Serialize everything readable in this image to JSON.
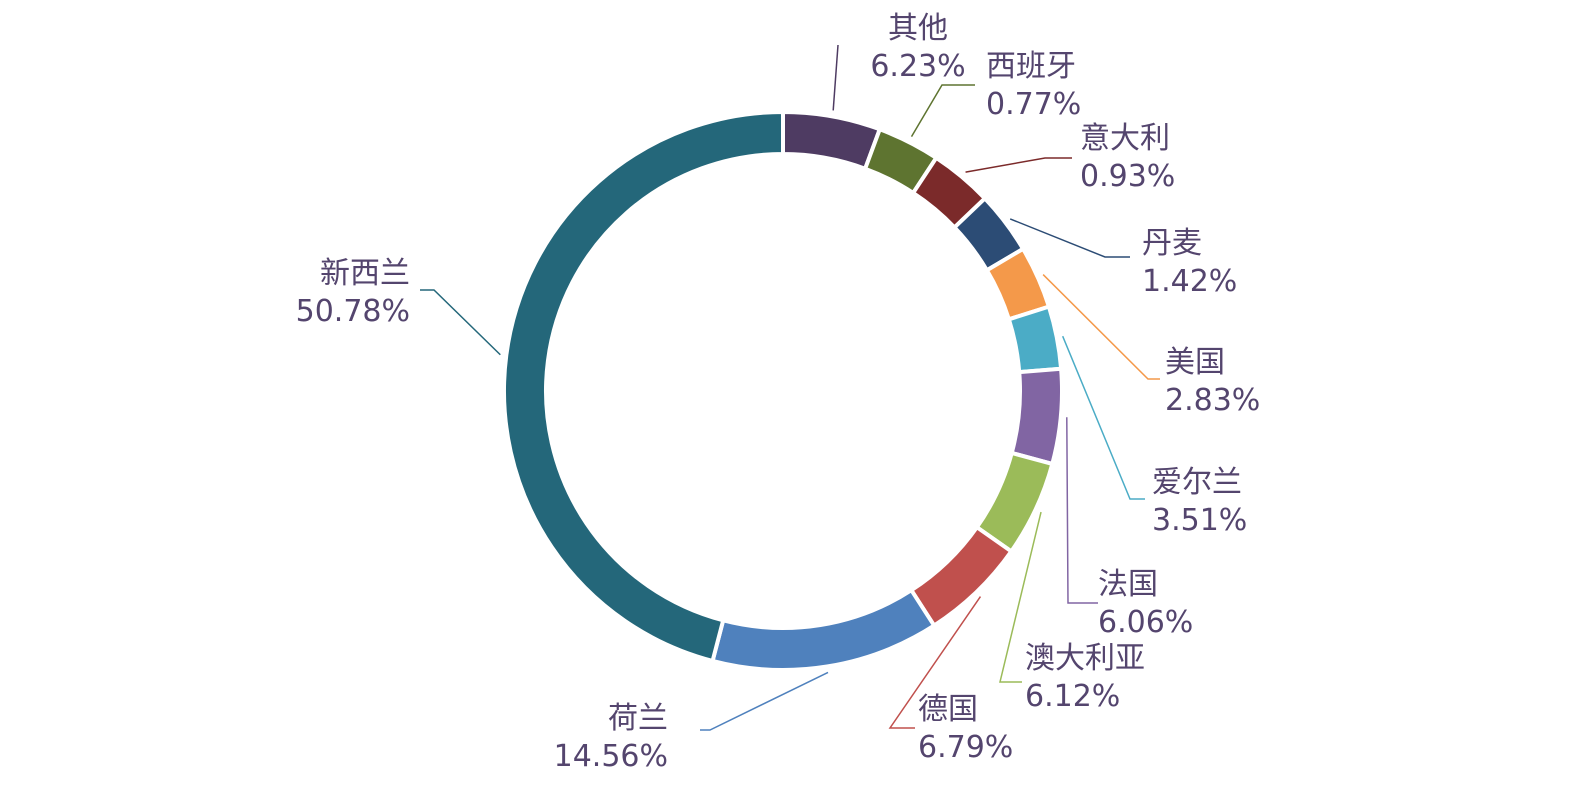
{
  "chart_data": {
    "type": "pie",
    "style": "donut",
    "title": "",
    "slices": [
      {
        "name": "其他",
        "value": 6.23,
        "value_label": "6.23%",
        "color": "#4e3b62"
      },
      {
        "name": "西班牙",
        "value": 0.77,
        "value_label": "0.77%",
        "color": "#5e7430"
      },
      {
        "name": "意大利",
        "value": 0.93,
        "value_label": "0.93%",
        "color": "#7b2a2a"
      },
      {
        "name": "丹麦",
        "value": 1.42,
        "value_label": "1.42%",
        "color": "#2c4c75"
      },
      {
        "name": "美国",
        "value": 2.83,
        "value_label": "2.83%",
        "color": "#f4994a"
      },
      {
        "name": "爱尔兰",
        "value": 3.51,
        "value_label": "3.51%",
        "color": "#4bacc6"
      },
      {
        "name": "法国",
        "value": 6.06,
        "value_label": "6.06%",
        "color": "#8165a3"
      },
      {
        "name": "澳大利亚",
        "value": 6.12,
        "value_label": "6.12%",
        "color": "#9bbb59"
      },
      {
        "name": "德国",
        "value": 6.79,
        "value_label": "6.79%",
        "color": "#c0504d"
      },
      {
        "name": "荷兰",
        "value": 14.56,
        "value_label": "14.56%",
        "color": "#4f81bd"
      },
      {
        "name": "新西兰",
        "value": 50.78,
        "value_label": "50.78%",
        "color": "#24677a"
      }
    ],
    "legend": "none",
    "label_color": "#54456e"
  }
}
